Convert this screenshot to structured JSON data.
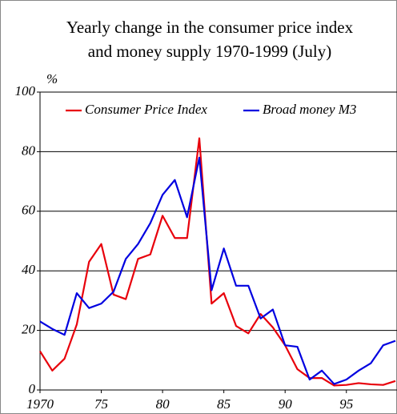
{
  "chart_data": {
    "type": "line",
    "title": [
      "Yearly change in the consumer price index",
      "and money supply 1970-1999 (July)"
    ],
    "y_label": "%",
    "x": [
      1970,
      1971,
      1972,
      1973,
      1974,
      1975,
      1976,
      1977,
      1978,
      1979,
      1980,
      1981,
      1982,
      1983,
      1984,
      1985,
      1986,
      1987,
      1988,
      1989,
      1990,
      1991,
      1992,
      1993,
      1994,
      1995,
      1996,
      1997,
      1998,
      1999
    ],
    "series": [
      {
        "name": "Consumer Price Index",
        "color": "#e8000b",
        "values": [
          13,
          6.5,
          10.5,
          22,
          43,
          49,
          32,
          30.5,
          44,
          45.5,
          58.5,
          51,
          51,
          84.5,
          29,
          32.5,
          21.5,
          19,
          25.5,
          21,
          15,
          7,
          4,
          4,
          1.5,
          1.7,
          2.3,
          1.9,
          1.7,
          3
        ]
      },
      {
        "name": "Broad money M3",
        "color": "#0000e0",
        "values": [
          23,
          20.5,
          18.5,
          32.5,
          27.5,
          29,
          33,
          44,
          49,
          56,
          65.5,
          70.5,
          58,
          78,
          33.5,
          47.5,
          35,
          35,
          24,
          27,
          15,
          14.5,
          3.5,
          6.5,
          2,
          3.5,
          6.5,
          9,
          15,
          16.5
        ]
      }
    ],
    "xlim": [
      1970,
      1999
    ],
    "xticks": [
      {
        "value": 1970,
        "label": "1970"
      },
      {
        "value": 1975,
        "label": "75"
      },
      {
        "value": 1980,
        "label": "80"
      },
      {
        "value": 1985,
        "label": "85"
      },
      {
        "value": 1990,
        "label": "90"
      },
      {
        "value": 1995,
        "label": "95"
      }
    ],
    "ylim": [
      0,
      100
    ],
    "yticks": [
      0,
      20,
      40,
      60,
      80,
      100
    ],
    "grid": true,
    "legend": "top"
  }
}
